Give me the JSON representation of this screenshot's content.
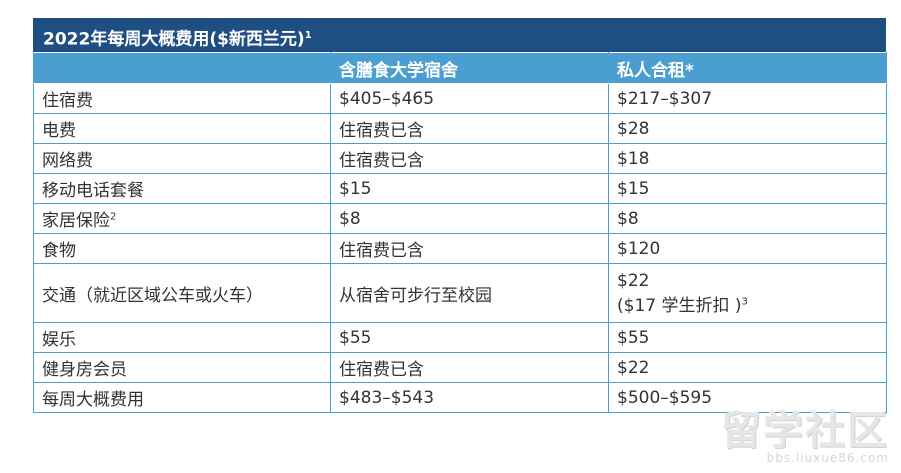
{
  "title": {
    "text": "2022年每周大概费用($新西兰元)",
    "sup": "1"
  },
  "headers": [
    "",
    "含膳食大学宿舍",
    "私人合租*"
  ],
  "rows": [
    {
      "item": "住宿费",
      "item_sup": "",
      "dorm": "$405–$465",
      "private": "$217–$307",
      "private_line2": "",
      "private_line2_sup": ""
    },
    {
      "item": "电费",
      "item_sup": "",
      "dorm": "住宿费已含",
      "private": "$28",
      "private_line2": "",
      "private_line2_sup": ""
    },
    {
      "item": "网络费",
      "item_sup": "",
      "dorm": "住宿费已含",
      "private": "$18",
      "private_line2": "",
      "private_line2_sup": ""
    },
    {
      "item": "移动电话套餐",
      "item_sup": "",
      "dorm": "$15",
      "private": "$15",
      "private_line2": "",
      "private_line2_sup": ""
    },
    {
      "item": "家居保险",
      "item_sup": "2",
      "dorm": "$8",
      "private": "$8",
      "private_line2": "",
      "private_line2_sup": ""
    },
    {
      "item": "食物",
      "item_sup": "",
      "dorm": "住宿费已含",
      "private": "$120",
      "private_line2": "",
      "private_line2_sup": ""
    },
    {
      "item": "交通（就近区域公车或火车）",
      "item_sup": "",
      "dorm": "从宿舍可步行至校园",
      "private": "$22",
      "private_line2": "($17 学生折扣 )",
      "private_line2_sup": "3"
    },
    {
      "item": "娱乐",
      "item_sup": "",
      "dorm": "$55",
      "private": "$55",
      "private_line2": "",
      "private_line2_sup": ""
    },
    {
      "item": "健身房会员",
      "item_sup": "",
      "dorm": "住宿费已含",
      "private": "$22",
      "private_line2": "",
      "private_line2_sup": ""
    },
    {
      "item": "每周大概费用",
      "item_sup": "",
      "dorm": "$483–$543",
      "private": "$500–$595",
      "private_line2": "",
      "private_line2_sup": ""
    }
  ],
  "watermark": {
    "main": "留学社区",
    "sub": "bbs.liuxue86.com"
  }
}
